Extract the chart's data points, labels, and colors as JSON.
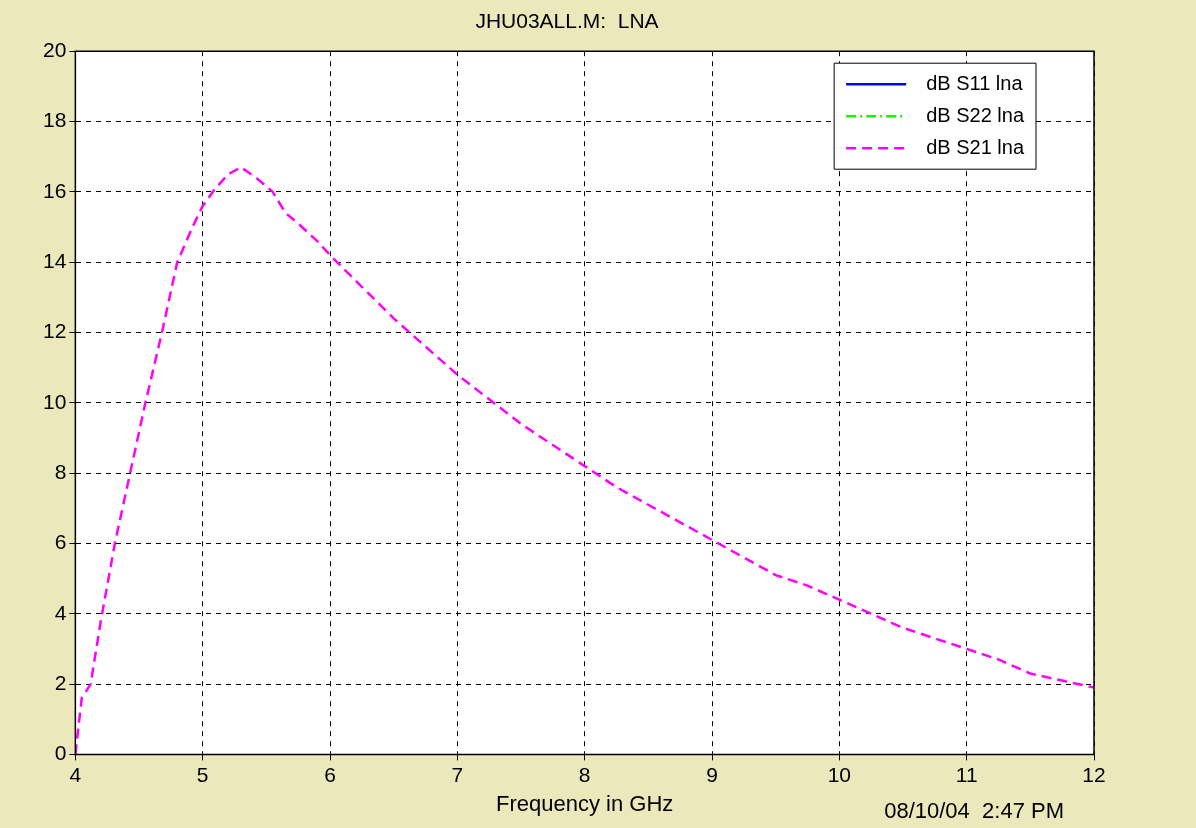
{
  "chart_data": {
    "type": "line",
    "title": "JHU03ALL.M:  LNA",
    "xlabel": "Frequency in GHz",
    "annotations": [
      "08/10/04  2:47 PM"
    ],
    "xlim": [
      4,
      12
    ],
    "xticks": [
      4,
      5,
      6,
      7,
      8,
      9,
      10,
      11,
      12
    ],
    "ylim": [
      0,
      20
    ],
    "yticks": [
      0,
      2,
      4,
      6,
      8,
      10,
      12,
      14,
      16,
      18,
      20
    ],
    "grid": true,
    "legend": "top right",
    "marker": "none",
    "series": [
      {
        "name": "dB S11 lna",
        "color": "#0000ff",
        "line_style": "solid"
      },
      {
        "name": "dB S22 lna",
        "color": "#00ff00",
        "line_style": "dashdot"
      },
      {
        "name": "dB S21 lna",
        "color": "#ff00ff",
        "line_style": "dashed",
        "x": [
          4,
          4.05,
          4.12,
          4.2,
          4.31,
          4.43,
          4.55,
          4.68,
          4.8,
          4.92,
          5.0,
          5.1,
          5.2,
          5.3,
          5.42,
          5.55,
          5.65,
          5.75,
          5.9,
          6.0,
          6.25,
          6.5,
          6.75,
          7.0,
          7.25,
          7.5,
          7.75,
          8.0,
          8.25,
          8.5,
          8.75,
          9.0,
          9.25,
          9.5,
          9.75,
          10.0,
          10.25,
          10.5,
          10.75,
          11.0,
          11.25,
          11.5,
          11.75,
          12.0
        ],
        "values": [
          0,
          1.6,
          2,
          3.8,
          6,
          8,
          10,
          12,
          14,
          15,
          15.6,
          16.1,
          16.5,
          16.7,
          16.4,
          16,
          15.4,
          15.1,
          14.6,
          14.2,
          13.3,
          12.4,
          11.6,
          10.8,
          10.1,
          9.4,
          8.8,
          8.2,
          7.6,
          7.1,
          6.6,
          6.1,
          5.6,
          5.1,
          4.8,
          4.4,
          4,
          3.6,
          3.3,
          3,
          2.7,
          2.3,
          2.1,
          1.9
        ]
      }
    ]
  }
}
